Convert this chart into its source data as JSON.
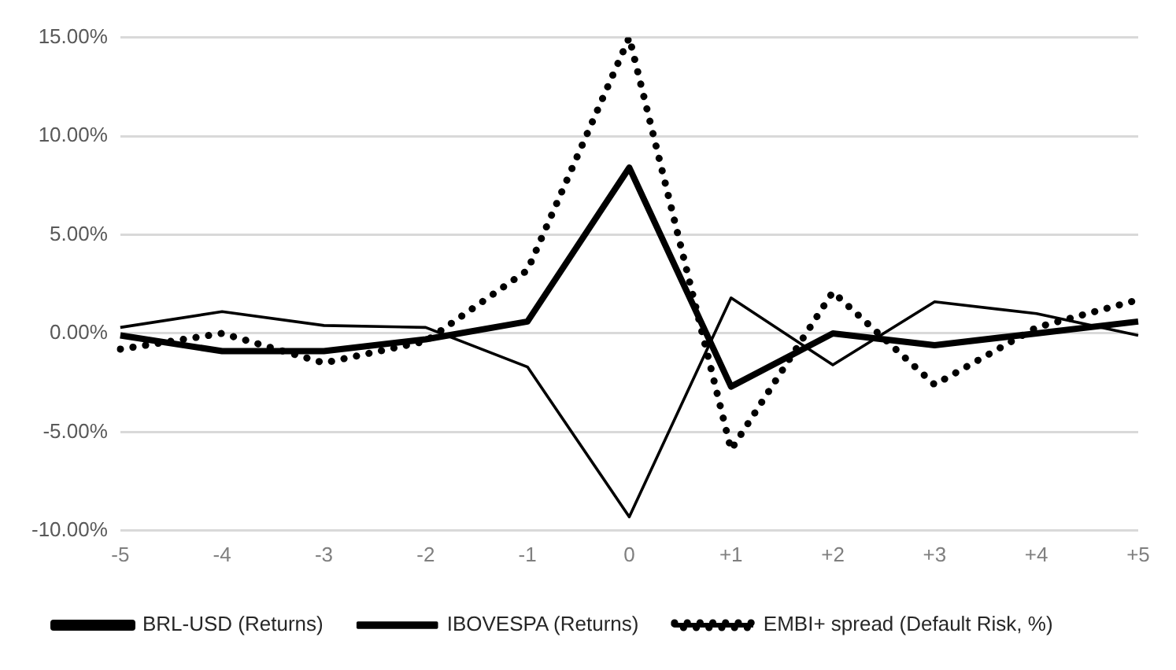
{
  "chart_data": {
    "type": "line",
    "categories": [
      "-5",
      "-4",
      "-3",
      "-2",
      "-1",
      "0",
      "+1",
      "+2",
      "+3",
      "+4",
      "+5"
    ],
    "series": [
      {
        "name": "BRL-USD (Returns)",
        "color": "#000000",
        "line_style": "solid",
        "values": [
          -0.1,
          -0.9,
          -0.9,
          -0.3,
          0.6,
          8.4,
          -2.7,
          0.0,
          -0.6,
          0.0,
          0.6
        ]
      },
      {
        "name": "IBOVESPA (Returns)",
        "color": "#000000",
        "line_style": "solid",
        "values": [
          0.3,
          1.1,
          0.4,
          0.3,
          -1.7,
          -9.3,
          1.8,
          -1.6,
          1.6,
          1.0,
          -0.1
        ]
      },
      {
        "name": "EMBI+ spread (Default Risk, %)",
        "color": "#000000",
        "line_style": "dotted",
        "values": [
          -0.8,
          0.0,
          -1.5,
          -0.4,
          3.2,
          15.0,
          -5.9,
          2.1,
          -2.6,
          0.3,
          1.7
        ]
      }
    ],
    "ylim": [
      -10,
      15
    ],
    "yticks": [
      {
        "value": -10,
        "label": "-10.00%"
      },
      {
        "value": -5,
        "label": "-5.00%"
      },
      {
        "value": 0,
        "label": "0.00%"
      },
      {
        "value": 5,
        "label": "5.00%"
      },
      {
        "value": 10,
        "label": "10.00%"
      },
      {
        "value": 15,
        "label": "15.00%"
      }
    ],
    "grid": "y",
    "legend": "bottom",
    "marker": "none"
  }
}
